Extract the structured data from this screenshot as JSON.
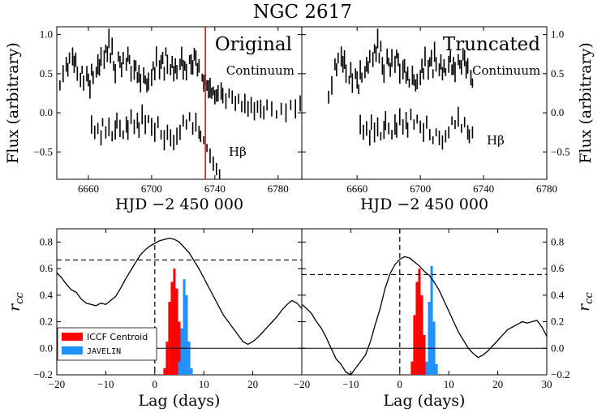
{
  "figure_title": "NGC 2617",
  "colors": {
    "red_line": "#ff0000",
    "iccf": "#ff0000",
    "javelin": "#1e90ff",
    "ink": "#000000"
  },
  "chart_data": [
    {
      "type": "scatter",
      "panel": "top-left",
      "title": "Original",
      "xlabel": "HJD −2 450 000",
      "ylabel": "Flux (arbitrary)",
      "xlim": [
        6640,
        6795
      ],
      "ylim": [
        -0.85,
        1.1
      ],
      "xticks": [
        6660,
        6700,
        6740,
        6780
      ],
      "yticks": [
        1.0,
        0.5,
        0.0,
        -0.5
      ],
      "xtick_labels": [
        "6660",
        "6700",
        "6740",
        "6780"
      ],
      "ytick_labels": [
        "1.0",
        "0.5",
        "0.0",
        "−0.5"
      ],
      "vline_x": 6734,
      "series": [
        {
          "name": "Continuum",
          "label": "Continuum",
          "x": [
            6642,
            6644,
            6646,
            6647,
            6648,
            6650,
            6651,
            6652,
            6653,
            6655,
            6656,
            6657,
            6659,
            6660,
            6661,
            6662,
            6663,
            6665,
            6666,
            6667,
            6668,
            6670,
            6671,
            6672,
            6673,
            6674,
            6675,
            6676,
            6677,
            6679,
            6680,
            6681,
            6682,
            6684,
            6685,
            6686,
            6687,
            6689,
            6690,
            6691,
            6692,
            6693,
            6695,
            6696,
            6697,
            6698,
            6700,
            6701,
            6702,
            6703,
            6705,
            6706,
            6707,
            6708,
            6709,
            6710,
            6712,
            6713,
            6714,
            6715,
            6716,
            6718,
            6719,
            6720,
            6721,
            6722,
            6724,
            6725,
            6726,
            6727,
            6728,
            6729,
            6730,
            6732,
            6733,
            6734,
            6735,
            6736,
            6737,
            6738,
            6739,
            6740,
            6741,
            6742,
            6744,
            6745,
            6747,
            6749,
            6751,
            6753,
            6755,
            6757,
            6759,
            6761,
            6763,
            6765,
            6767,
            6769,
            6771,
            6773,
            6776,
            6779,
            6782,
            6785,
            6788,
            6791,
            6794
          ],
          "y": [
            0.35,
            0.5,
            0.62,
            0.55,
            0.7,
            0.72,
            0.62,
            0.68,
            0.5,
            0.42,
            0.55,
            0.38,
            0.5,
            0.42,
            0.3,
            0.55,
            0.45,
            0.52,
            0.62,
            0.58,
            0.72,
            0.68,
            0.82,
            0.75,
            0.95,
            0.7,
            0.85,
            0.6,
            0.5,
            0.72,
            0.65,
            0.55,
            0.7,
            0.62,
            0.75,
            0.68,
            0.5,
            0.55,
            0.6,
            0.45,
            0.5,
            0.38,
            0.48,
            0.42,
            0.35,
            0.4,
            0.45,
            0.6,
            0.5,
            0.72,
            0.55,
            0.65,
            0.7,
            0.5,
            0.78,
            0.62,
            0.55,
            0.65,
            0.5,
            0.6,
            0.52,
            0.62,
            0.72,
            0.55,
            0.6,
            0.52,
            0.68,
            0.62,
            0.58,
            0.75,
            0.7,
            0.55,
            0.6,
            0.45,
            0.38,
            0.42,
            0.35,
            0.3,
            0.32,
            0.25,
            0.28,
            0.2,
            0.22,
            0.25,
            0.28,
            0.22,
            0.15,
            0.25,
            0.2,
            0.12,
            0.18,
            0.08,
            0.12,
            0.05,
            0.1,
            0.02,
            0.08,
            0.05,
            0.0,
            0.1,
            0.05,
            -0.02,
            0.05,
            0.0,
            0.1,
            0.05,
            0.12
          ]
        },
        {
          "name": "Hβ",
          "label": "Hβ",
          "x": [
            6662,
            6664,
            6666,
            6668,
            6669,
            6671,
            6673,
            6675,
            6677,
            6678,
            6680,
            6682,
            6684,
            6685,
            6687,
            6689,
            6691,
            6692,
            6694,
            6696,
            6698,
            6700,
            6702,
            6704,
            6706,
            6708,
            6710,
            6712,
            6714,
            6716,
            6718,
            6720,
            6722,
            6724,
            6726,
            6728,
            6730,
            6731,
            6733,
            6735,
            6737,
            6739,
            6741,
            6743
          ],
          "y": [
            -0.15,
            -0.25,
            -0.2,
            -0.32,
            -0.12,
            -0.25,
            -0.18,
            -0.3,
            -0.22,
            -0.1,
            -0.2,
            -0.28,
            -0.15,
            -0.22,
            -0.05,
            -0.18,
            -0.1,
            -0.22,
            -0.02,
            -0.15,
            -0.08,
            -0.18,
            -0.25,
            -0.12,
            -0.28,
            -0.35,
            -0.25,
            -0.32,
            -0.38,
            -0.3,
            -0.25,
            -0.1,
            -0.15,
            -0.05,
            -0.2,
            -0.12,
            -0.25,
            -0.3,
            -0.35,
            -0.45,
            -0.55,
            -0.65,
            -0.72,
            -0.8
          ]
        }
      ]
    },
    {
      "type": "scatter",
      "panel": "top-right",
      "title": "Truncated",
      "xlabel": "HJD −2 450 000",
      "ylabel": "Flux (arbitrary)",
      "xlim": [
        6625,
        6780
      ],
      "ylim": [
        -0.85,
        1.1
      ],
      "xticks": [
        6660,
        6700,
        6740,
        6780
      ],
      "yticks": [
        1.0,
        0.5,
        0.0,
        -0.5
      ],
      "xtick_labels": [
        "6660",
        "6700",
        "6740",
        "6780"
      ],
      "ytick_labels": [
        "1.0",
        "0.5",
        "0.0",
        "−0.5"
      ],
      "series": [
        {
          "name": "Continuum",
          "label": "Continuum",
          "x": [
            6642,
            6644,
            6646,
            6647,
            6648,
            6650,
            6651,
            6652,
            6653,
            6655,
            6656,
            6657,
            6659,
            6660,
            6661,
            6662,
            6663,
            6665,
            6666,
            6667,
            6668,
            6670,
            6671,
            6672,
            6673,
            6674,
            6675,
            6676,
            6677,
            6679,
            6680,
            6681,
            6682,
            6684,
            6685,
            6686,
            6687,
            6689,
            6690,
            6691,
            6692,
            6693,
            6695,
            6696,
            6697,
            6698,
            6700,
            6701,
            6702,
            6703,
            6705,
            6706,
            6707,
            6708,
            6709,
            6710,
            6712,
            6713,
            6714,
            6715,
            6716,
            6718,
            6719,
            6720,
            6721,
            6722,
            6724,
            6725,
            6726,
            6727,
            6728,
            6729,
            6730,
            6732,
            6733
          ],
          "y": [
            0.2,
            0.35,
            0.62,
            0.55,
            0.7,
            0.72,
            0.62,
            0.68,
            0.5,
            0.42,
            0.55,
            0.38,
            0.5,
            0.42,
            0.3,
            0.55,
            0.45,
            0.52,
            0.62,
            0.58,
            0.72,
            0.68,
            0.82,
            0.75,
            0.95,
            0.7,
            0.85,
            0.6,
            0.5,
            0.72,
            0.65,
            0.55,
            0.7,
            0.62,
            0.75,
            0.68,
            0.5,
            0.55,
            0.6,
            0.45,
            0.5,
            0.38,
            0.48,
            0.42,
            0.35,
            0.4,
            0.45,
            0.6,
            0.5,
            0.72,
            0.55,
            0.65,
            0.7,
            0.5,
            0.78,
            0.62,
            0.55,
            0.65,
            0.5,
            0.6,
            0.52,
            0.62,
            0.72,
            0.55,
            0.6,
            0.52,
            0.68,
            0.62,
            0.58,
            0.75,
            0.7,
            0.55,
            0.6,
            0.45,
            0.38
          ]
        },
        {
          "name": "Hβ",
          "label": "Hβ",
          "x": [
            6662,
            6664,
            6666,
            6668,
            6669,
            6671,
            6673,
            6675,
            6677,
            6678,
            6680,
            6682,
            6684,
            6685,
            6687,
            6689,
            6691,
            6692,
            6694,
            6696,
            6698,
            6700,
            6702,
            6704,
            6706,
            6708,
            6710,
            6712,
            6714,
            6716,
            6718,
            6720,
            6722,
            6724,
            6726,
            6728,
            6730,
            6731,
            6733
          ],
          "y": [
            -0.15,
            -0.25,
            -0.2,
            -0.32,
            -0.12,
            -0.25,
            -0.18,
            -0.3,
            -0.22,
            -0.1,
            -0.2,
            -0.28,
            -0.15,
            -0.22,
            -0.05,
            -0.18,
            -0.1,
            -0.22,
            -0.02,
            -0.15,
            -0.08,
            -0.18,
            -0.25,
            -0.12,
            -0.28,
            -0.35,
            -0.25,
            -0.32,
            -0.38,
            -0.3,
            -0.25,
            -0.1,
            -0.15,
            -0.05,
            -0.2,
            -0.12,
            -0.25,
            -0.3,
            -0.25
          ]
        }
      ]
    },
    {
      "type": "line",
      "panel": "bottom-left",
      "xlabel": "Lag (days)",
      "ylabel": "r_cc",
      "xlim": [
        -20,
        30
      ],
      "ylim": [
        -0.2,
        0.9
      ],
      "xticks": [
        -20,
        -10,
        0,
        10,
        20
      ],
      "yticks": [
        0.8,
        0.6,
        0.4,
        0.2,
        0.0,
        -0.2
      ],
      "xtick_labels": [
        "−20",
        "−10",
        "0",
        "10",
        "20"
      ],
      "ytick_labels": [
        "0.8",
        "0.6",
        "0.4",
        "0.2",
        "0.0",
        "−0.2"
      ],
      "hline_dashed": 0.665,
      "vline_dashed": 0,
      "hline_solid": 0.0,
      "legend": {
        "location": "lower-left",
        "entries": [
          "ICCF Centroid",
          "JAVELIN"
        ]
      },
      "ccf": {
        "x": [
          -20,
          -19,
          -18,
          -17,
          -16,
          -15,
          -14,
          -13,
          -12,
          -11,
          -10,
          -9,
          -8,
          -7,
          -6,
          -5,
          -4,
          -3,
          -2,
          -1,
          0,
          1,
          2,
          3,
          4,
          5,
          6,
          7,
          8,
          9,
          10,
          11,
          12,
          13,
          14,
          15,
          16,
          17,
          18,
          19,
          20,
          21,
          22,
          23,
          24,
          25,
          26,
          27,
          28,
          29,
          30
        ],
        "y": [
          0.57,
          0.53,
          0.48,
          0.44,
          0.42,
          0.37,
          0.34,
          0.33,
          0.32,
          0.34,
          0.33,
          0.36,
          0.39,
          0.45,
          0.52,
          0.58,
          0.64,
          0.7,
          0.74,
          0.77,
          0.79,
          0.81,
          0.82,
          0.83,
          0.82,
          0.8,
          0.76,
          0.72,
          0.66,
          0.6,
          0.53,
          0.46,
          0.39,
          0.32,
          0.25,
          0.2,
          0.15,
          0.1,
          0.05,
          0.03,
          0.05,
          0.08,
          0.12,
          0.16,
          0.2,
          0.24,
          0.29,
          0.33,
          0.36,
          0.34,
          0.3
        ]
      },
      "iccf_hist": {
        "centers": [
          2.0,
          2.5,
          3.0,
          3.5,
          4.0,
          4.5,
          5.0,
          5.5,
          6.0,
          6.5
        ],
        "heights": [
          0.05,
          0.25,
          0.55,
          0.7,
          0.8,
          0.65,
          0.4,
          0.15,
          0.05,
          0.02
        ]
      },
      "javelin_hist": {
        "centers": [
          5.0,
          5.5,
          6.0,
          6.5,
          7.0,
          7.5
        ],
        "heights": [
          0.1,
          0.35,
          0.72,
          0.6,
          0.25,
          0.05
        ]
      }
    },
    {
      "type": "line",
      "panel": "bottom-right",
      "xlabel": "Lag (days)",
      "ylabel": "r_cc",
      "xlim": [
        -20,
        30
      ],
      "ylim": [
        -0.2,
        0.9
      ],
      "xticks": [
        -20,
        -10,
        0,
        10,
        20,
        30
      ],
      "yticks": [
        0.8,
        0.6,
        0.4,
        0.2,
        0.0,
        -0.2
      ],
      "xtick_labels": [
        "−20",
        "−10",
        "0",
        "10",
        "20",
        "30"
      ],
      "ytick_labels": [
        "0.8",
        "0.6",
        "0.4",
        "0.2",
        "0.0",
        "−0.2"
      ],
      "hline_dashed": 0.555,
      "vline_dashed": 0,
      "hline_solid": 0.0,
      "ccf": {
        "x": [
          -20,
          -19,
          -18,
          -17,
          -16,
          -15,
          -14,
          -13,
          -12,
          -11,
          -10,
          -9,
          -8,
          -7,
          -6,
          -5,
          -4,
          -3,
          -2,
          -1,
          0,
          1,
          2,
          3,
          4,
          5,
          6,
          7,
          8,
          9,
          10,
          11,
          12,
          13,
          14,
          15,
          16,
          17,
          18,
          19,
          20,
          21,
          22,
          23,
          24,
          25,
          26,
          27,
          28,
          29,
          30
        ],
        "y": [
          0.33,
          0.3,
          0.26,
          0.2,
          0.15,
          0.08,
          0.0,
          -0.08,
          -0.12,
          -0.18,
          -0.2,
          -0.15,
          -0.1,
          -0.05,
          0.05,
          0.18,
          0.3,
          0.45,
          0.56,
          0.63,
          0.67,
          0.69,
          0.68,
          0.65,
          0.62,
          0.58,
          0.55,
          0.5,
          0.44,
          0.36,
          0.28,
          0.2,
          0.12,
          0.06,
          0.0,
          -0.04,
          -0.07,
          -0.05,
          -0.02,
          0.02,
          0.06,
          0.1,
          0.14,
          0.16,
          0.18,
          0.2,
          0.19,
          0.2,
          0.21,
          0.16,
          0.09
        ]
      },
      "iccf_hist": {
        "centers": [
          2.5,
          3.0,
          3.5,
          4.0,
          4.5,
          5.0,
          5.5,
          6.0
        ],
        "heights": [
          0.1,
          0.45,
          0.7,
          0.8,
          0.6,
          0.3,
          0.08,
          0.02
        ]
      },
      "javelin_hist": {
        "centers": [
          5.5,
          6.0,
          6.5,
          7.0,
          7.5
        ],
        "heights": [
          0.1,
          0.55,
          0.82,
          0.4,
          0.08
        ]
      }
    }
  ]
}
